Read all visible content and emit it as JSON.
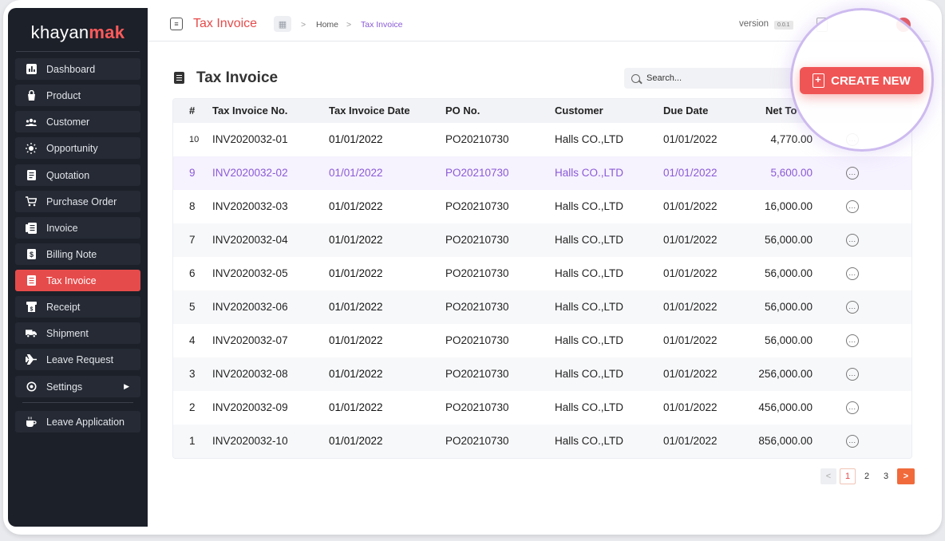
{
  "brand": {
    "prefix": "khayan",
    "accent": "mak"
  },
  "sidebar": {
    "items": [
      {
        "label": "Dashboard",
        "icon": "chart-icon"
      },
      {
        "label": "Product",
        "icon": "bag-icon"
      },
      {
        "label": "Customer",
        "icon": "users-icon"
      },
      {
        "label": "Opportunity",
        "icon": "sun-icon"
      },
      {
        "label": "Quotation",
        "icon": "document-icon"
      },
      {
        "label": "Purchase Order",
        "icon": "cart-icon"
      },
      {
        "label": "Invoice",
        "icon": "invoice-icon"
      },
      {
        "label": "Billing Note",
        "icon": "billing-icon"
      },
      {
        "label": "Tax Invoice",
        "icon": "tax-invoice-icon"
      },
      {
        "label": "Receipt",
        "icon": "receipt-icon"
      },
      {
        "label": "Shipment",
        "icon": "truck-icon"
      },
      {
        "label": "Leave Request",
        "icon": "plane-icon"
      },
      {
        "label": "Settings",
        "icon": "gear-icon"
      },
      {
        "label": "Leave Application",
        "icon": "coffee-icon"
      }
    ],
    "active": "Tax Invoice"
  },
  "header": {
    "title": "Tax Invoice",
    "breadcrumb": [
      "Home",
      "Tax Invoice"
    ],
    "breadcrumb_sep": ">",
    "version_label": "version",
    "version_value": "0.0.1"
  },
  "page": {
    "title": "Tax Invoice",
    "search_placeholder": "Search...",
    "create_label": "CREATE NEW"
  },
  "table": {
    "columns": [
      "#",
      "Tax Invoice No.",
      "Tax Invoice Date",
      "PO No.",
      "Customer",
      "Due Date",
      "Net To"
    ],
    "rows": [
      {
        "n": "10",
        "no": "INV2020032-01",
        "date": "01/01/2022",
        "po": "PO20210730",
        "customer": "Halls CO.,LTD",
        "due": "01/01/2022",
        "net": "4,770.00"
      },
      {
        "n": "9",
        "no": "INV2020032-02",
        "date": "01/01/2022",
        "po": "PO20210730",
        "customer": "Halls CO.,LTD",
        "due": "01/01/2022",
        "net": "5,600.00"
      },
      {
        "n": "8",
        "no": "INV2020032-03",
        "date": "01/01/2022",
        "po": "PO20210730",
        "customer": "Halls CO.,LTD",
        "due": "01/01/2022",
        "net": "16,000.00"
      },
      {
        "n": "7",
        "no": "INV2020032-04",
        "date": "01/01/2022",
        "po": "PO20210730",
        "customer": "Halls CO.,LTD",
        "due": "01/01/2022",
        "net": "56,000.00"
      },
      {
        "n": "6",
        "no": "INV2020032-05",
        "date": "01/01/2022",
        "po": "PO20210730",
        "customer": "Halls CO.,LTD",
        "due": "01/01/2022",
        "net": "56,000.00"
      },
      {
        "n": "5",
        "no": "INV2020032-06",
        "date": "01/01/2022",
        "po": "PO20210730",
        "customer": "Halls CO.,LTD",
        "due": "01/01/2022",
        "net": "56,000.00"
      },
      {
        "n": "4",
        "no": "INV2020032-07",
        "date": "01/01/2022",
        "po": "PO20210730",
        "customer": "Halls CO.,LTD",
        "due": "01/01/2022",
        "net": "56,000.00"
      },
      {
        "n": "3",
        "no": "INV2020032-08",
        "date": "01/01/2022",
        "po": "PO20210730",
        "customer": "Halls CO.,LTD",
        "due": "01/01/2022",
        "net": "256,000.00"
      },
      {
        "n": "2",
        "no": "INV2020032-09",
        "date": "01/01/2022",
        "po": "PO20210730",
        "customer": "Halls CO.,LTD",
        "due": "01/01/2022",
        "net": "456,000.00"
      },
      {
        "n": "1",
        "no": "INV2020032-10",
        "date": "01/01/2022",
        "po": "PO20210730",
        "customer": "Halls CO.,LTD",
        "due": "01/01/2022",
        "net": "856,000.00"
      }
    ],
    "highlighted_row": 1
  },
  "pagination": {
    "prev": "<",
    "pages": [
      "1",
      "2",
      "3"
    ],
    "current": "1",
    "next": ">"
  },
  "colors": {
    "accent": "#e64b4b",
    "sidebar_bg": "#1c2029",
    "highlight_text": "#8a5ad6",
    "pager_next": "#f06a3c"
  }
}
